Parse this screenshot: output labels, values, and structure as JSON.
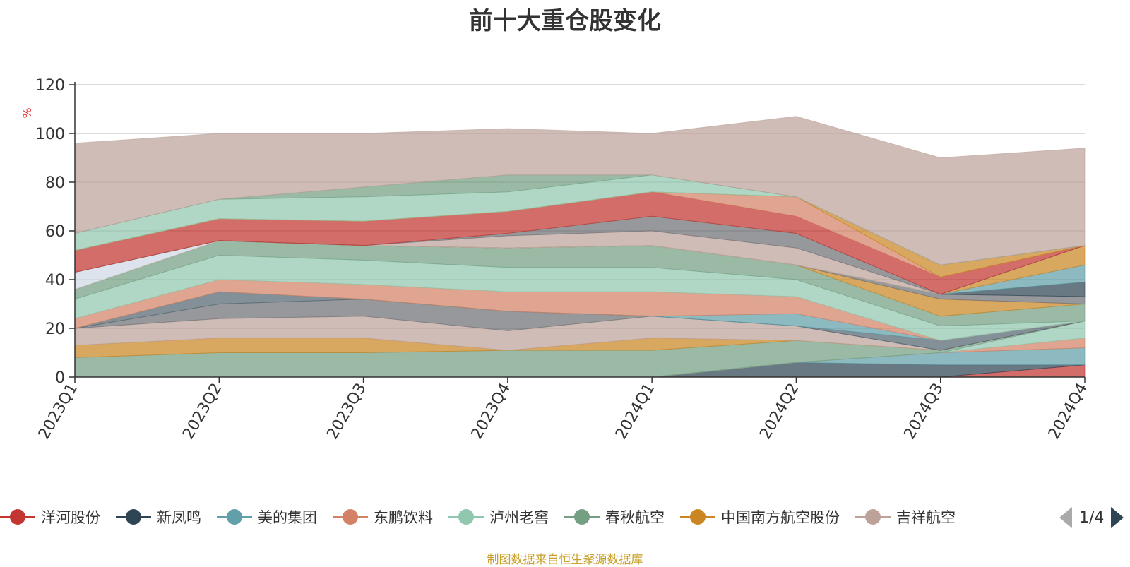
{
  "chart_data": {
    "type": "area",
    "title": "前十大重仓股变化",
    "xlabel": "",
    "ylabel": "%",
    "ylim": [
      0,
      120
    ],
    "yticks": [
      0,
      20,
      40,
      60,
      80,
      100,
      120
    ],
    "grid": true,
    "stacked": true,
    "categories": [
      "2023Q1",
      "2023Q2",
      "2023Q3",
      "2023Q4",
      "2024Q1",
      "2024Q2",
      "2024Q3",
      "2024Q4"
    ],
    "series": [
      {
        "name": "洋河股份",
        "color": "#c23531",
        "values": [
          0,
          0,
          0,
          0,
          0,
          0,
          0,
          5
        ]
      },
      {
        "name": "新凤鸣",
        "color": "#2f4554",
        "values": [
          0,
          0,
          0,
          0,
          0,
          6,
          5,
          0
        ]
      },
      {
        "name": "美的集团",
        "color": "#61a0a8",
        "values": [
          0,
          0,
          0,
          0,
          0,
          0,
          5,
          7
        ]
      },
      {
        "name": "东鹏饮料",
        "color": "#d48265",
        "values": [
          0,
          0,
          0,
          0,
          0,
          0,
          0,
          4
        ]
      },
      {
        "name": "泸州老窖",
        "color": "#91c7ae",
        "values": [
          0,
          0,
          0,
          0,
          0,
          0,
          0,
          7
        ]
      },
      {
        "name": "春秋航空",
        "color": "#749f83",
        "values": [
          8,
          10,
          10,
          11,
          11,
          9,
          1,
          0
        ]
      },
      {
        "name": "中国南方航空股份",
        "color": "#ca8622",
        "values": [
          5,
          6,
          6,
          0,
          5,
          0,
          0,
          0
        ]
      },
      {
        "name": "吉祥航空",
        "color": "#bda29a",
        "values": [
          7,
          8,
          9,
          8,
          9,
          6,
          0,
          0
        ]
      },
      {
        "name": "",
        "color": "#6e7074",
        "values": [
          0,
          6,
          7,
          8,
          0,
          0,
          0,
          0
        ]
      },
      {
        "name": "",
        "color": "#546570",
        "values": [
          0,
          5,
          0,
          0,
          0,
          0,
          4,
          0
        ]
      },
      {
        "name": "",
        "color": "#61a0a8",
        "values": [
          0,
          0,
          0,
          0,
          0,
          5,
          0,
          0
        ]
      },
      {
        "name": "",
        "color": "#d48265",
        "values": [
          4,
          5,
          6,
          8,
          10,
          7,
          0,
          0
        ]
      },
      {
        "name": "",
        "color": "#91c7ae",
        "values": [
          8,
          10,
          10,
          10,
          10,
          7,
          6,
          0
        ]
      },
      {
        "name": "",
        "color": "#749f83",
        "values": [
          4,
          6,
          6,
          8,
          9,
          6,
          4,
          7
        ]
      },
      {
        "name": "",
        "color": "#ca8622",
        "values": [
          0,
          0,
          0,
          0,
          0,
          0,
          7,
          0
        ]
      },
      {
        "name": "",
        "color": "#6e7074",
        "values": [
          0,
          0,
          0,
          0,
          0,
          0,
          2,
          3
        ]
      },
      {
        "name": "",
        "color": "#2f4554",
        "values": [
          0,
          0,
          0,
          0,
          0,
          0,
          0,
          6
        ]
      },
      {
        "name": "",
        "color": "#61a0a8",
        "values": [
          0,
          0,
          0,
          0,
          0,
          0,
          0,
          7
        ]
      },
      {
        "name": "",
        "color": "#ca8622",
        "values": [
          0,
          0,
          0,
          0,
          0,
          0,
          0,
          8
        ]
      },
      {
        "name": "",
        "color": "#d0d8e4",
        "values": [
          7,
          0,
          0,
          0,
          0,
          0,
          0,
          0
        ]
      },
      {
        "name": "",
        "color": "#bda29a",
        "values": [
          0,
          0,
          0,
          5,
          6,
          7,
          0,
          0
        ]
      },
      {
        "name": "",
        "color": "#6e7074",
        "values": [
          0,
          0,
          0,
          1,
          6,
          6,
          0,
          0
        ]
      },
      {
        "name": "",
        "color": "#c23531",
        "values": [
          9,
          9,
          10,
          9,
          10,
          7,
          7,
          0
        ]
      },
      {
        "name": "",
        "color": "#d48265",
        "values": [
          0,
          0,
          0,
          0,
          0,
          8,
          0,
          0
        ]
      },
      {
        "name": "",
        "color": "#ca8622",
        "values": [
          0,
          0,
          0,
          0,
          0,
          0,
          5,
          0
        ]
      },
      {
        "name": "",
        "color": "#91c7ae",
        "values": [
          7,
          8,
          10,
          8,
          7,
          0,
          0,
          0
        ]
      },
      {
        "name": "",
        "color": "#749f83",
        "values": [
          0,
          0,
          4,
          7,
          0,
          0,
          0,
          0
        ]
      },
      {
        "name": "",
        "color": "#bda29a",
        "values": [
          37,
          27,
          22,
          19,
          17,
          33,
          44,
          40
        ]
      }
    ]
  },
  "legend": {
    "items": [
      {
        "label": "洋河股份",
        "color": "#c23531"
      },
      {
        "label": "新凤鸣",
        "color": "#2f4554"
      },
      {
        "label": "美的集团",
        "color": "#61a0a8"
      },
      {
        "label": "东鹏饮料",
        "color": "#d48265"
      },
      {
        "label": "泸州老窖",
        "color": "#91c7ae"
      },
      {
        "label": "春秋航空",
        "color": "#749f83"
      },
      {
        "label": "中国南方航空股份",
        "color": "#ca8622"
      },
      {
        "label": "吉祥航空",
        "color": "#bda29a"
      }
    ],
    "page_text": "1/4"
  },
  "source_note": "制图数据来自恒生聚源数据库"
}
